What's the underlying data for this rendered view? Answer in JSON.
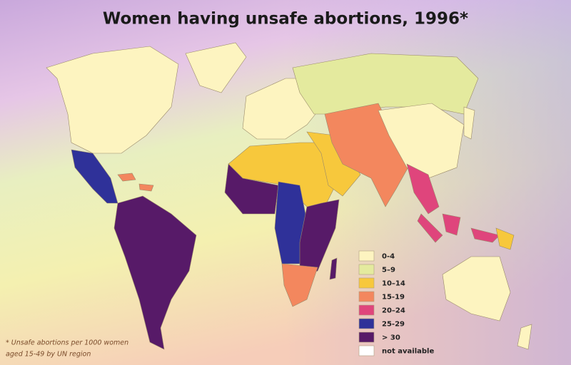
{
  "title": "Women having unsafe abortions, 1996*",
  "legend": {
    "items": [
      {
        "label": "0-4",
        "color": "#fdf4c0"
      },
      {
        "label": "5–9",
        "color": "#e4ea9e"
      },
      {
        "label": "10–14",
        "color": "#f7c83c"
      },
      {
        "label": "15-19",
        "color": "#f3875e"
      },
      {
        "label": "20–24",
        "color": "#df457c"
      },
      {
        "label": "25-29",
        "color": "#2f3199"
      },
      {
        "label": "> 30",
        "color": "#571a68"
      },
      {
        "label": "not available",
        "color": "#ffffff"
      }
    ]
  },
  "footnote": [
    "* Unsafe abortions per 1000 women",
    "aged 15-49 by UN region"
  ]
}
